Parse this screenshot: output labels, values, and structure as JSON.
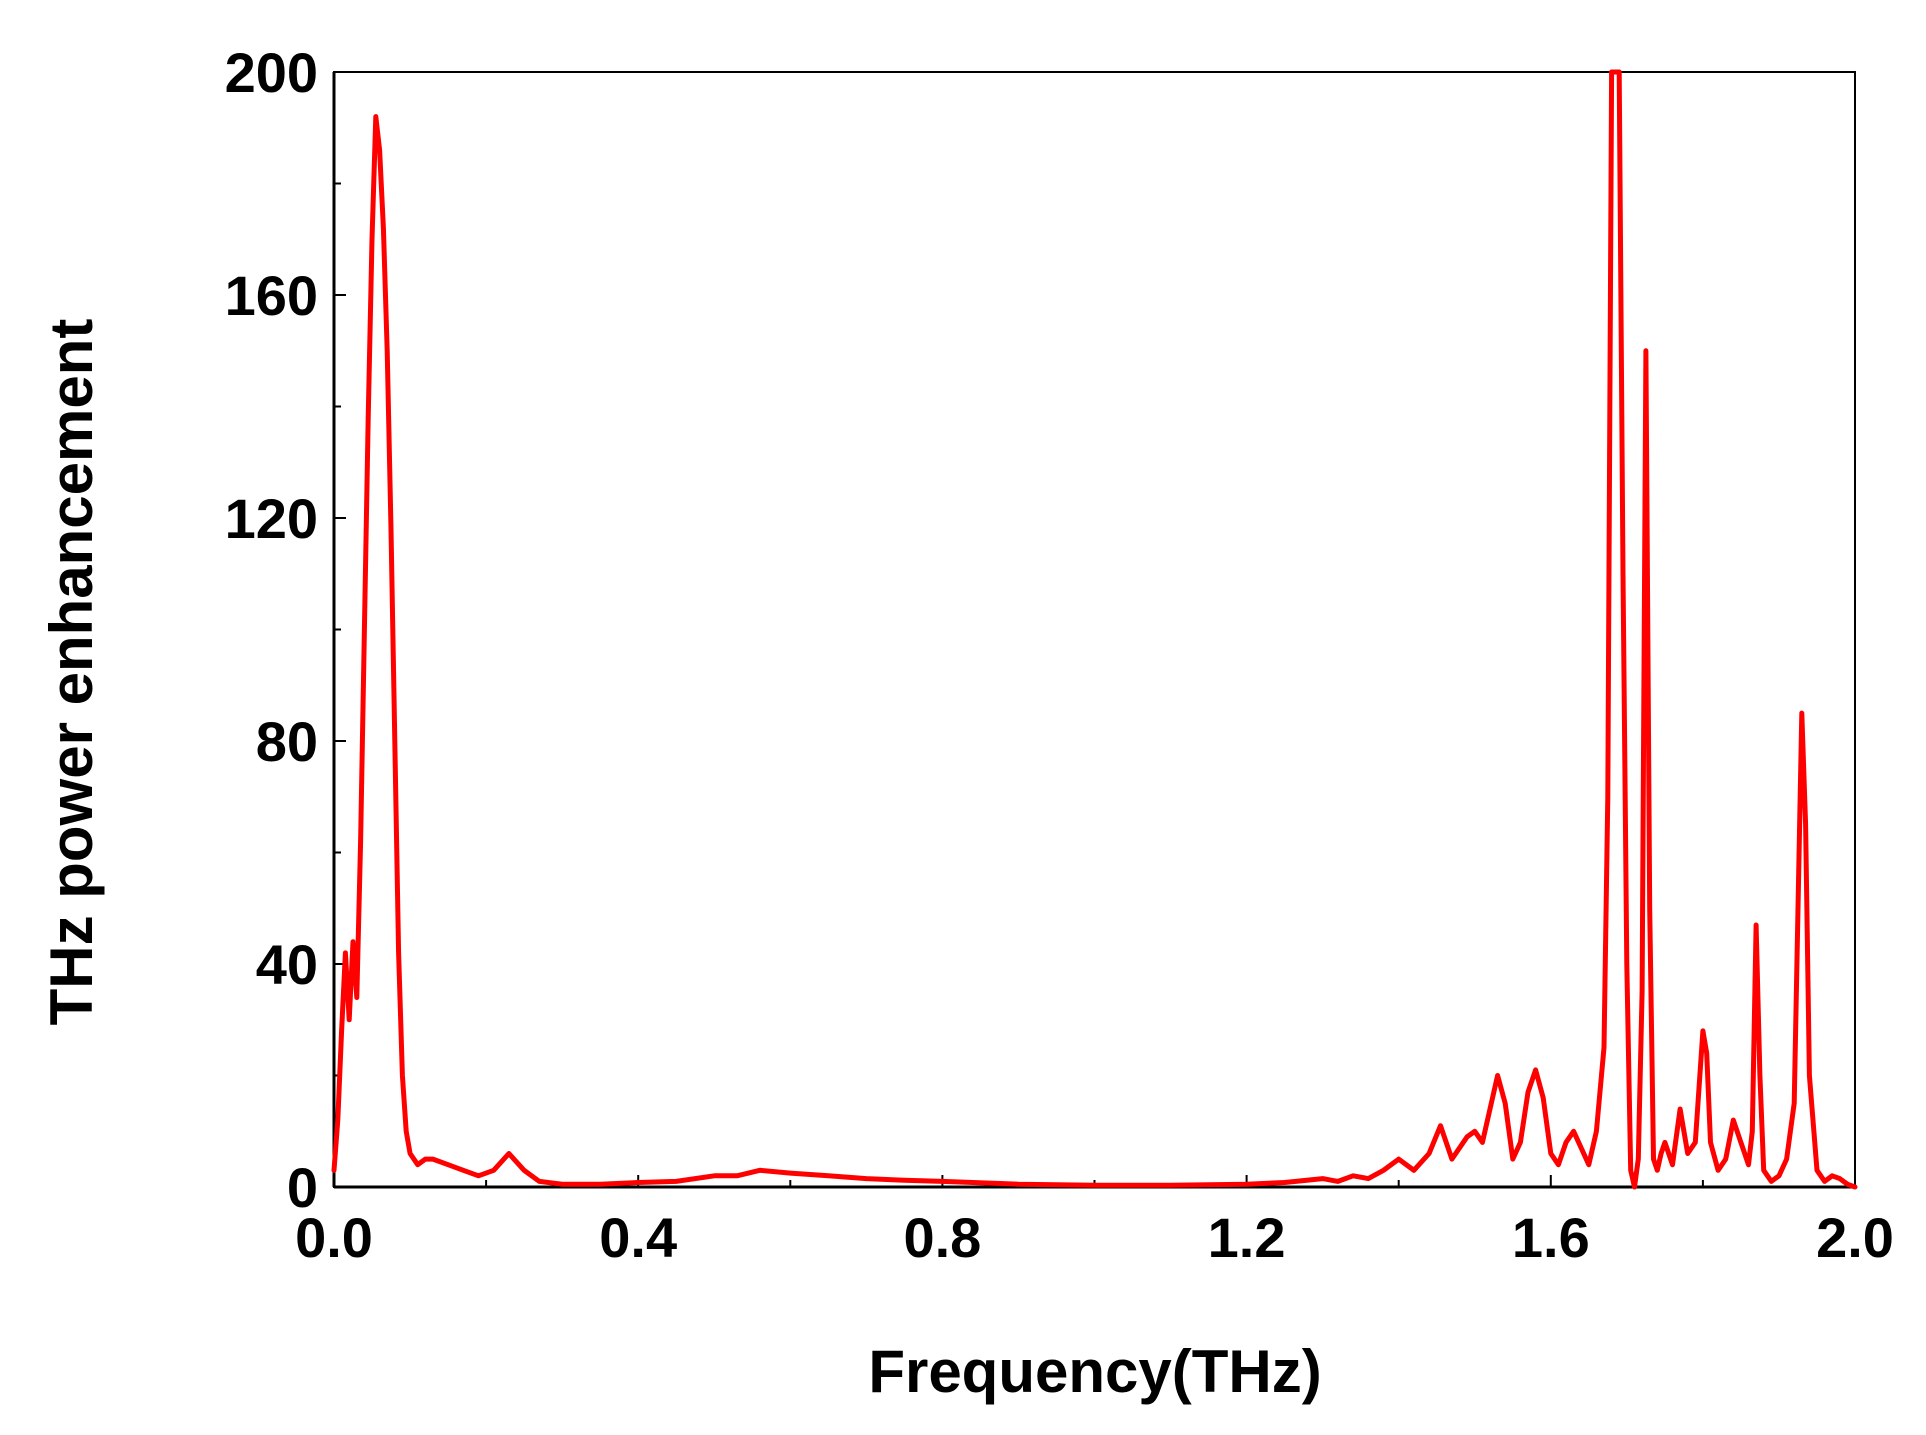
{
  "chart_data": {
    "type": "line",
    "xlabel": "Frequency(THz)",
    "ylabel": "THz power enhancement",
    "xlim": [
      0.0,
      2.0
    ],
    "ylim": [
      0,
      200
    ],
    "x_ticks": [
      0.0,
      0.4,
      0.8,
      1.2,
      1.6,
      2.0
    ],
    "x_tick_labels": [
      "0.0",
      "0.4",
      "0.8",
      "1.2",
      "1.6",
      "2.0"
    ],
    "y_ticks": [
      0,
      40,
      80,
      120,
      160,
      200
    ],
    "y_tick_labels": [
      "0",
      "40",
      "80",
      "120",
      "160",
      "200"
    ],
    "grid": false,
    "line_color": "#ff0000",
    "series": [
      {
        "x": [
          0.0,
          0.005,
          0.01,
          0.015,
          0.02,
          0.025,
          0.03,
          0.035,
          0.04,
          0.045,
          0.05,
          0.055,
          0.06,
          0.065,
          0.07,
          0.075,
          0.08,
          0.085,
          0.09,
          0.095,
          0.1,
          0.11,
          0.12,
          0.13,
          0.15,
          0.17,
          0.19,
          0.21,
          0.23,
          0.25,
          0.27,
          0.3,
          0.35,
          0.4,
          0.45,
          0.5,
          0.53,
          0.56,
          0.6,
          0.65,
          0.7,
          0.75,
          0.8,
          0.9,
          1.0,
          1.1,
          1.2,
          1.25,
          1.3,
          1.32,
          1.34,
          1.36,
          1.38,
          1.4,
          1.42,
          1.44,
          1.455,
          1.47,
          1.49,
          1.5,
          1.51,
          1.52,
          1.53,
          1.54,
          1.55,
          1.56,
          1.57,
          1.58,
          1.59,
          1.6,
          1.61,
          1.62,
          1.63,
          1.64,
          1.65,
          1.66,
          1.67,
          1.675,
          1.68,
          1.685,
          1.69,
          1.695,
          1.7,
          1.705,
          1.71,
          1.715,
          1.72,
          1.725,
          1.73,
          1.735,
          1.74,
          1.745,
          1.75,
          1.76,
          1.77,
          1.78,
          1.79,
          1.8,
          1.805,
          1.81,
          1.82,
          1.83,
          1.84,
          1.85,
          1.86,
          1.865,
          1.87,
          1.875,
          1.88,
          1.89,
          1.9,
          1.91,
          1.92,
          1.925,
          1.93,
          1.935,
          1.94,
          1.95,
          1.96,
          1.97,
          1.98,
          1.99,
          2.0
        ],
        "values": [
          3,
          12,
          28,
          42,
          30,
          44,
          34,
          62,
          100,
          138,
          170,
          192,
          186,
          172,
          150,
          118,
          80,
          42,
          20,
          10,
          6,
          4,
          5,
          5,
          4,
          3,
          2,
          3,
          6,
          3,
          1,
          0.5,
          0.5,
          0.8,
          1,
          2,
          2,
          3,
          2.5,
          2,
          1.5,
          1.2,
          1,
          0.5,
          0.3,
          0.3,
          0.5,
          0.8,
          1.5,
          1,
          2,
          1.5,
          3,
          5,
          3,
          6,
          11,
          5,
          9,
          10,
          8,
          14,
          20,
          15,
          5,
          8,
          17,
          21,
          16,
          6,
          4,
          8,
          10,
          7,
          4,
          10,
          25,
          70,
          200,
          200,
          200,
          110,
          40,
          3,
          0,
          5,
          35,
          150,
          50,
          5,
          3,
          6,
          8,
          4,
          14,
          6,
          8,
          28,
          24,
          8,
          3,
          5,
          12,
          8,
          4,
          10,
          47,
          20,
          3,
          1,
          2,
          5,
          15,
          50,
          85,
          65,
          20,
          3,
          1,
          2,
          1.5,
          0.5,
          0
        ]
      }
    ]
  }
}
